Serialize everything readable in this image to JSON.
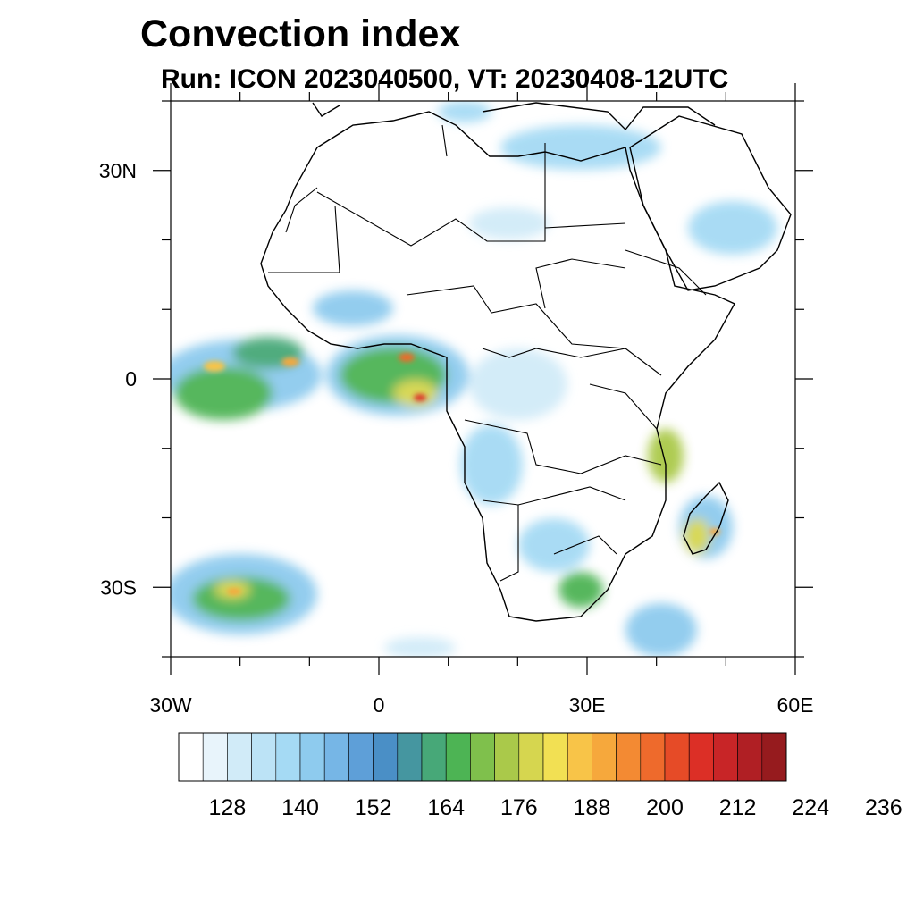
{
  "title": "Convection index",
  "subtitle": "Run: ICON 2023040500,  VT: 20230408-12UTC",
  "map": {
    "extent": {
      "lon": [
        -30,
        60
      ],
      "lat": [
        -40,
        40
      ]
    },
    "lat_ticks": [
      {
        "value": 30,
        "label": "30N"
      },
      {
        "value": 0,
        "label": "0"
      },
      {
        "value": -30,
        "label": "30S"
      }
    ],
    "lon_ticks": [
      {
        "value": -30,
        "label": "30W"
      },
      {
        "value": 0,
        "label": "0"
      },
      {
        "value": 30,
        "label": "30E"
      },
      {
        "value": 60,
        "label": "60E"
      }
    ],
    "minor_lat_ticks": [
      -40,
      -20,
      -10,
      10,
      20,
      40
    ],
    "minor_lon_ticks": [
      -20,
      -10,
      10,
      20,
      40,
      50
    ]
  },
  "colorbar": {
    "colors": [
      "#ffffff",
      "#e8f4fb",
      "#d1ebf8",
      "#bce3f6",
      "#a5daf4",
      "#8ecbee",
      "#76b6e6",
      "#5e9fd8",
      "#4a8fc6",
      "#4596a0",
      "#47a878",
      "#4db454",
      "#7fc04c",
      "#aac94a",
      "#d6d64f",
      "#f2e053",
      "#f8c448",
      "#f6a83c",
      "#f38a33",
      "#ee6a2c",
      "#e64b27",
      "#dc2f26",
      "#c82527",
      "#b01f24",
      "#961b1e"
    ],
    "labels": [
      "128",
      "140",
      "152",
      "164",
      "176",
      "188",
      "200",
      "212",
      "224",
      "236"
    ]
  }
}
